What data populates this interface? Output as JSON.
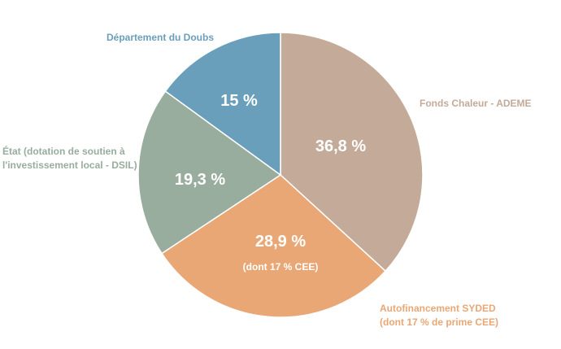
{
  "chart_data": {
    "type": "pie",
    "slices": [
      {
        "label_lines": [
          "Fonds Chaleur - ADEME"
        ],
        "value": 36.8,
        "value_text": "36,8 %",
        "note": "",
        "color": "#c4aa98"
      },
      {
        "label_lines": [
          "Autofinancement SYDED",
          "(dont 17 % de prime CEE)"
        ],
        "value": 28.9,
        "value_text": "28,9 %",
        "note": "(dont 17 % CEE)",
        "color": "#e9a775"
      },
      {
        "label_lines": [
          "État (dotation de soutien à",
          "l'investissement local - DSIL)"
        ],
        "value": 19.3,
        "value_text": "19,3 %",
        "note": "",
        "color": "#98ad9d"
      },
      {
        "label_lines": [
          "Département du Doubs"
        ],
        "value": 15,
        "value_text": "15 %",
        "note": "",
        "color": "#6a9fbb"
      }
    ]
  }
}
